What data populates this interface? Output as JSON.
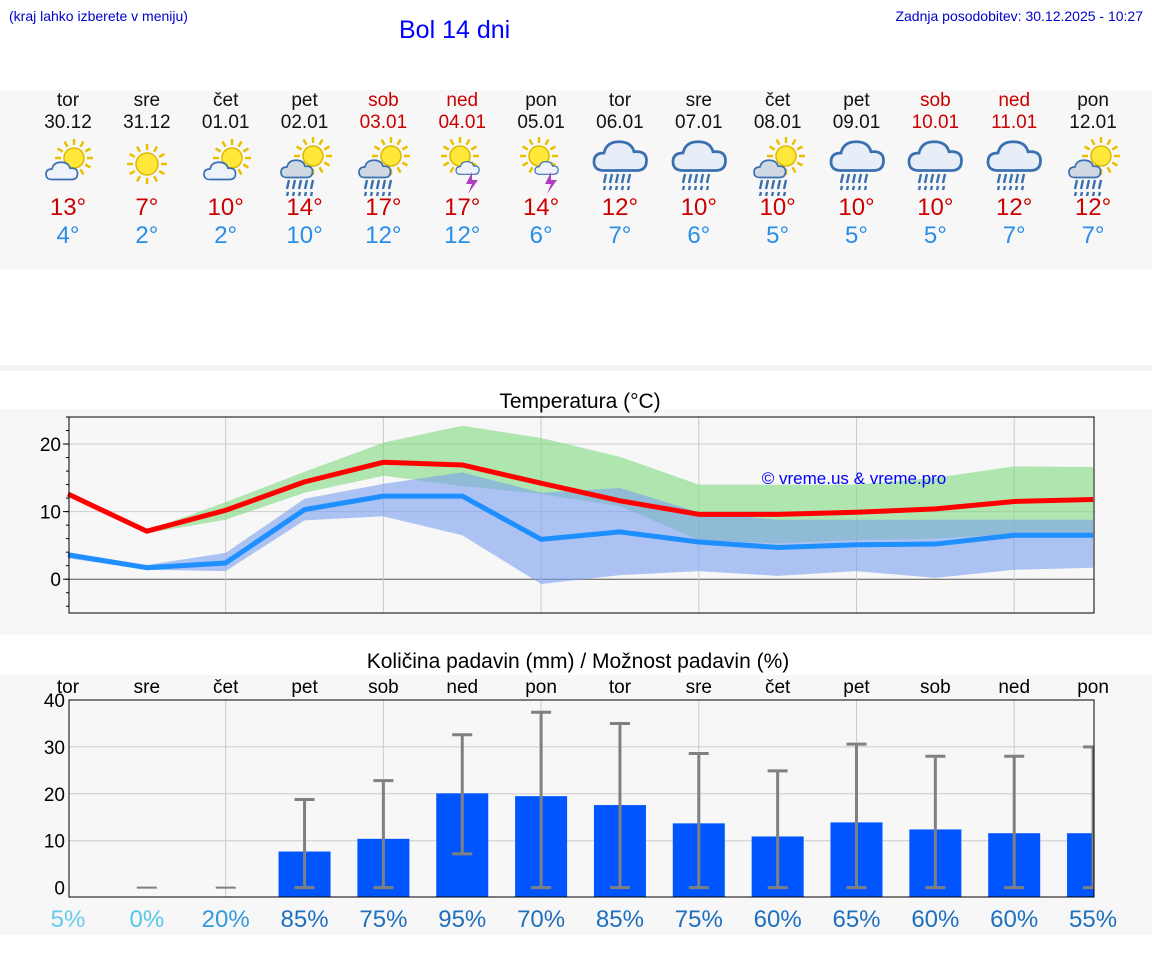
{
  "header": {
    "hint": "(kraj lahko izberete v meniju)",
    "title": "Bol 14 dni",
    "updated_label": "Zadnja posodobitev:",
    "updated_value": "30.12.2025 - 10:27"
  },
  "colors": {
    "title": "#0000ff",
    "weekend": "#cc0000",
    "tmax": "#cc0000",
    "tmin": "#2a8ee8",
    "bar": "#0055ff"
  },
  "days": [
    {
      "name": "tor",
      "date": "30.12",
      "icon": "sun-cloud-icon",
      "tmax": "13°",
      "tmin": "4°",
      "weekend": false
    },
    {
      "name": "sre",
      "date": "31.12",
      "icon": "sun-icon",
      "tmax": "7°",
      "tmin": "2°",
      "weekend": false
    },
    {
      "name": "čet",
      "date": "01.01",
      "icon": "sun-cloud-icon",
      "tmax": "10°",
      "tmin": "2°",
      "weekend": false
    },
    {
      "name": "pet",
      "date": "02.01",
      "icon": "sun-cloud-rain-icon",
      "tmax": "14°",
      "tmin": "10°",
      "weekend": false
    },
    {
      "name": "sob",
      "date": "03.01",
      "icon": "sun-cloud-rain-icon",
      "tmax": "17°",
      "tmin": "12°",
      "weekend": true
    },
    {
      "name": "ned",
      "date": "04.01",
      "icon": "sun-thunder-icon",
      "tmax": "17°",
      "tmin": "12°",
      "weekend": true
    },
    {
      "name": "pon",
      "date": "05.01",
      "icon": "sun-thunder-icon",
      "tmax": "14°",
      "tmin": "6°",
      "weekend": false
    },
    {
      "name": "tor",
      "date": "06.01",
      "icon": "cloud-rain-icon",
      "tmax": "12°",
      "tmin": "7°",
      "weekend": false
    },
    {
      "name": "sre",
      "date": "07.01",
      "icon": "cloud-rain-icon",
      "tmax": "10°",
      "tmin": "6°",
      "weekend": false
    },
    {
      "name": "čet",
      "date": "08.01",
      "icon": "sun-cloud-rain-icon",
      "tmax": "10°",
      "tmin": "5°",
      "weekend": false
    },
    {
      "name": "pet",
      "date": "09.01",
      "icon": "cloud-rain-icon",
      "tmax": "10°",
      "tmin": "5°",
      "weekend": false
    },
    {
      "name": "sob",
      "date": "10.01",
      "icon": "cloud-rain-icon",
      "tmax": "10°",
      "tmin": "5°",
      "weekend": true
    },
    {
      "name": "ned",
      "date": "11.01",
      "icon": "cloud-rain-icon",
      "tmax": "12°",
      "tmin": "7°",
      "weekend": true
    },
    {
      "name": "pon",
      "date": "12.01",
      "icon": "sun-cloud-rain-icon",
      "tmax": "12°",
      "tmin": "7°",
      "weekend": false
    }
  ],
  "chart_data": [
    {
      "type": "line",
      "title": "Temperatura (°C)",
      "watermark": "© vreme.us & vreme.pro",
      "ylim": [
        -5,
        24
      ],
      "yticks": [
        "0",
        "10",
        "20"
      ],
      "ytick_values": [
        0,
        10,
        20
      ],
      "x": [
        0,
        1,
        2,
        3,
        4,
        5,
        6,
        7,
        8,
        9,
        10,
        11,
        12,
        13
      ],
      "series": [
        {
          "name": "max",
          "color": "#ff0000",
          "values": [
            12.6,
            7.1,
            10.2,
            14.4,
            17.3,
            16.9,
            14.2,
            11.6,
            9.6,
            9.6,
            9.9,
            10.4,
            11.5,
            11.8
          ]
        },
        {
          "name": "min",
          "color": "#1e8fff",
          "values": [
            3.6,
            1.7,
            2.4,
            10.3,
            12.3,
            12.3,
            5.9,
            7.0,
            5.5,
            4.7,
            5.1,
            5.2,
            6.5,
            6.5
          ]
        }
      ],
      "bands": [
        {
          "name": "max-range",
          "color": "#7ed87e",
          "low": [
            12.3,
            6.8,
            8.8,
            12.8,
            15.3,
            13.8,
            12.6,
            10.8,
            5.8,
            5.3,
            5.8,
            6.0,
            6.7,
            6.8
          ],
          "high": [
            12.9,
            7.2,
            11.4,
            15.9,
            20.2,
            22.7,
            20.9,
            18.1,
            14.0,
            14.0,
            14.0,
            15.0,
            16.7,
            16.6
          ]
        },
        {
          "name": "min-range",
          "color": "#7a9ff0",
          "low": [
            3.1,
            1.4,
            1.2,
            8.7,
            9.3,
            6.5,
            -0.7,
            0.6,
            1.2,
            0.5,
            1.2,
            0.2,
            1.4,
            1.7
          ],
          "high": [
            4.0,
            2.1,
            3.9,
            11.9,
            14.1,
            15.8,
            12.8,
            13.5,
            9.9,
            8.8,
            8.8,
            8.8,
            8.8,
            8.8
          ]
        }
      ]
    },
    {
      "type": "bar",
      "title": "Količina padavin (mm) / Možnost padavin (%)",
      "ylim": [
        -2,
        40
      ],
      "yticks": [
        "0",
        "10",
        "20",
        "30",
        "40"
      ],
      "ytick_values": [
        0,
        10,
        20,
        30,
        40
      ],
      "categories": [
        "tor",
        "sre",
        "čet",
        "pet",
        "sob",
        "ned",
        "pon",
        "tor",
        "sre",
        "čet",
        "pet",
        "sob",
        "ned",
        "pon"
      ],
      "values": [
        0,
        0,
        0,
        7.7,
        10.4,
        20.1,
        19.5,
        17.6,
        13.7,
        10.9,
        13.9,
        12.4,
        11.6,
        11.6
      ],
      "error_low": [
        0,
        0,
        0,
        0,
        0,
        7.2,
        0,
        0,
        0,
        0,
        0,
        0,
        0,
        0
      ],
      "error_high": [
        0,
        0,
        0,
        18.8,
        22.8,
        32.6,
        37.4,
        35.0,
        28.6,
        24.9,
        30.6,
        28.0,
        28.0,
        30.0
      ],
      "probability": [
        "5%",
        "0%",
        "20%",
        "85%",
        "75%",
        "95%",
        "70%",
        "85%",
        "75%",
        "60%",
        "65%",
        "60%",
        "60%",
        "55%"
      ],
      "probability_colors": [
        "#66ccee",
        "#55c6ea",
        "#3399dd",
        "#1e6fbe",
        "#1e6fbe",
        "#1e6fbe",
        "#1e6fbe",
        "#1e6fbe",
        "#1e6fbe",
        "#1e6fbe",
        "#1e6fbe",
        "#1e6fbe",
        "#1e6fbe",
        "#1e6fbe"
      ]
    }
  ]
}
